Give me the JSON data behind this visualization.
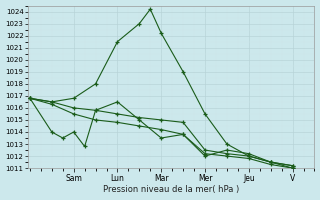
{
  "bg_color": "#cce8ec",
  "grid_color_major": "#aacccc",
  "grid_color_minor": "#ddeef0",
  "line_color": "#1a5c1a",
  "xlabel": "Pression niveau de la mer( hPa )",
  "ylim": [
    1011,
    1024.5
  ],
  "yticks": [
    1011,
    1012,
    1013,
    1014,
    1015,
    1016,
    1017,
    1018,
    1019,
    1020,
    1021,
    1022,
    1023,
    1024
  ],
  "x_day_labels": [
    "Sam",
    "Lun",
    "Mar",
    "Mer",
    "Jeu",
    "V"
  ],
  "x_day_positions": [
    2,
    4,
    6,
    8,
    10,
    12
  ],
  "xlim": [
    -0.1,
    13.0
  ],
  "series": [
    {
      "x": [
        0,
        1,
        2,
        3,
        4,
        5,
        5.5,
        6,
        7,
        8,
        9,
        10,
        11,
        12
      ],
      "y": [
        1016.8,
        1016.5,
        1016.8,
        1018.0,
        1021.5,
        1023.0,
        1024.2,
        1022.2,
        1019.0,
        1015.5,
        1013.0,
        1012.0,
        1011.5,
        1011.2
      ]
    },
    {
      "x": [
        0,
        1,
        2,
        3,
        4,
        5,
        6,
        7,
        8,
        9,
        10,
        11,
        12
      ],
      "y": [
        1016.8,
        1016.5,
        1016.0,
        1015.8,
        1015.5,
        1015.2,
        1015.0,
        1014.8,
        1012.5,
        1012.2,
        1012.0,
        1011.5,
        1011.2
      ]
    },
    {
      "x": [
        0,
        1,
        2,
        3,
        4,
        5,
        6,
        7,
        8,
        9,
        10,
        11,
        12
      ],
      "y": [
        1016.8,
        1016.3,
        1015.5,
        1015.0,
        1014.8,
        1014.5,
        1014.2,
        1013.8,
        1012.2,
        1012.0,
        1011.8,
        1011.3,
        1011.0
      ]
    },
    {
      "x": [
        0,
        1,
        1.5,
        2,
        2.5,
        3,
        4,
        5,
        6,
        7,
        8,
        9,
        10,
        11,
        12
      ],
      "y": [
        1016.8,
        1014.0,
        1013.5,
        1014.0,
        1012.8,
        1015.8,
        1016.5,
        1015.0,
        1013.5,
        1013.8,
        1012.0,
        1012.5,
        1012.2,
        1011.5,
        1011.0
      ]
    }
  ]
}
